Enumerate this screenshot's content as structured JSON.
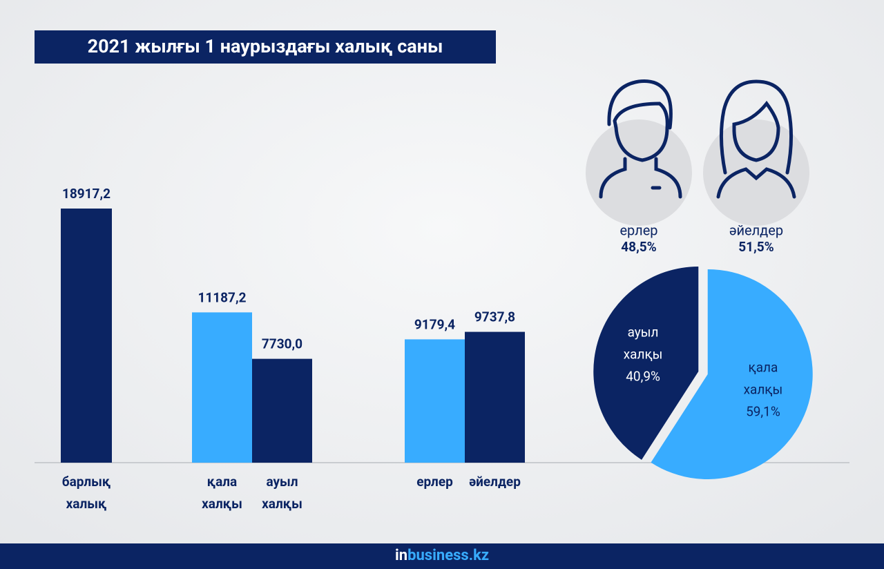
{
  "header": {
    "title": "2021 жылғы 1 наурыздағы халық саны"
  },
  "chart_data": [
    {
      "type": "bar",
      "categories": [
        "барлық халық",
        "қала халқы",
        "ауыл халқы",
        "ерлер",
        "әйелдер"
      ],
      "values": [
        18917.2,
        11187.2,
        7730.0,
        9179.4,
        9737.8
      ],
      "value_labels": [
        "18917,2",
        "11187,2",
        "7730,0",
        "9179,4",
        "9737,8"
      ],
      "colors": [
        "#0b2463",
        "#38acff",
        "#0b2463",
        "#38acff",
        "#0b2463"
      ]
    },
    {
      "type": "pie",
      "categories": [
        "ауыл халқы",
        "қала халқы"
      ],
      "values": [
        40.9,
        59.1
      ],
      "value_labels": [
        "40,9%",
        "59,1%"
      ],
      "colors": [
        "#0b2463",
        "#38acff"
      ]
    }
  ],
  "gender": [
    {
      "label": "ерлер",
      "share": "48,5%"
    },
    {
      "label": "әйелдер",
      "share": "51,5%"
    }
  ],
  "footer": {
    "prefix": "in",
    "name": "business.kz"
  }
}
